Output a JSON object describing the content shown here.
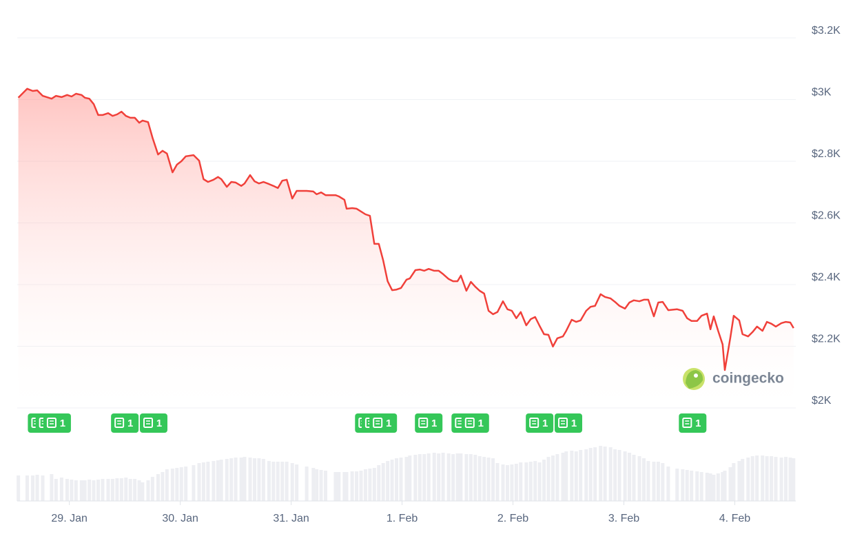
{
  "chart_data": {
    "type": "line",
    "x": [
      -0.46,
      -0.38,
      -0.33,
      -0.29,
      -0.24,
      -0.16,
      -0.12,
      -0.07,
      -0.02,
      0.02,
      0.06,
      0.11,
      0.14,
      0.18,
      0.22,
      0.26,
      0.3,
      0.35,
      0.39,
      0.43,
      0.47,
      0.51,
      0.55,
      0.59,
      0.63,
      0.66,
      0.71,
      0.75,
      0.8,
      0.84,
      0.88,
      0.93,
      0.97,
      1.01,
      1.05,
      1.12,
      1.17,
      1.21,
      1.25,
      1.3,
      1.34,
      1.37,
      1.42,
      1.46,
      1.5,
      1.55,
      1.58,
      1.63,
      1.67,
      1.71,
      1.75,
      1.8,
      1.84,
      1.88,
      1.92,
      1.96,
      2.01,
      2.05,
      2.14,
      2.2,
      2.23,
      2.27,
      2.31,
      2.4,
      2.43,
      2.48,
      2.5,
      2.55,
      2.59,
      2.63,
      2.67,
      2.71,
      2.75,
      2.79,
      2.83,
      2.87,
      2.91,
      2.95,
      2.99,
      3.04,
      3.07,
      3.12,
      3.16,
      3.2,
      3.24,
      3.29,
      3.33,
      3.37,
      3.42,
      3.46,
      3.5,
      3.53,
      3.58,
      3.62,
      3.66,
      3.7,
      3.74,
      3.78,
      3.82,
      3.86,
      3.91,
      3.95,
      3.99,
      4.03,
      4.07,
      4.12,
      4.16,
      4.2,
      4.24,
      4.28,
      4.32,
      4.36,
      4.4,
      4.45,
      4.48,
      4.53,
      4.57,
      4.61,
      4.66,
      4.7,
      4.74,
      4.79,
      4.83,
      4.88,
      4.92,
      4.96,
      5.01,
      5.05,
      5.09,
      5.14,
      5.18,
      5.22,
      5.27,
      5.31,
      5.35,
      5.4,
      5.48,
      5.53,
      5.57,
      5.61,
      5.66,
      5.7,
      5.75,
      5.78,
      5.81,
      5.85,
      5.89,
      5.91,
      5.96,
      5.99,
      6.04,
      6.07,
      6.12,
      6.16,
      6.2,
      6.25,
      6.29,
      6.33,
      6.37,
      6.42,
      6.46,
      6.5,
      6.53
    ],
    "series": [
      {
        "color": "#f0403a",
        "values": [
          3006,
          3035,
          3028,
          3030,
          3012,
          3003,
          3012,
          3008,
          3015,
          3010,
          3019,
          3015,
          3006,
          3003,
          2985,
          2950,
          2950,
          2956,
          2947,
          2952,
          2961,
          2947,
          2941,
          2941,
          2925,
          2932,
          2927,
          2876,
          2822,
          2834,
          2825,
          2764,
          2789,
          2800,
          2816,
          2820,
          2802,
          2742,
          2733,
          2740,
          2749,
          2742,
          2717,
          2733,
          2731,
          2720,
          2728,
          2755,
          2735,
          2728,
          2733,
          2726,
          2720,
          2713,
          2737,
          2740,
          2679,
          2704,
          2704,
          2702,
          2693,
          2699,
          2690,
          2690,
          2686,
          2675,
          2646,
          2648,
          2646,
          2637,
          2628,
          2623,
          2532,
          2532,
          2478,
          2411,
          2382,
          2384,
          2389,
          2416,
          2420,
          2447,
          2449,
          2445,
          2451,
          2445,
          2445,
          2434,
          2418,
          2411,
          2411,
          2429,
          2380,
          2409,
          2393,
          2380,
          2371,
          2315,
          2304,
          2311,
          2346,
          2320,
          2315,
          2291,
          2311,
          2268,
          2288,
          2295,
          2266,
          2239,
          2237,
          2199,
          2226,
          2232,
          2250,
          2286,
          2279,
          2284,
          2315,
          2328,
          2331,
          2369,
          2360,
          2355,
          2344,
          2331,
          2322,
          2342,
          2349,
          2346,
          2351,
          2351,
          2297,
          2342,
          2344,
          2317,
          2320,
          2315,
          2291,
          2282,
          2282,
          2299,
          2306,
          2255,
          2297,
          2250,
          2206,
          2123,
          2228,
          2299,
          2284,
          2239,
          2232,
          2246,
          2264,
          2250,
          2279,
          2273,
          2264,
          2275,
          2279,
          2277,
          2259
        ]
      }
    ],
    "volume": {
      "color": "#edeef2",
      "values": [
        37,
        37,
        37,
        38,
        37,
        39,
        32,
        34,
        32,
        31,
        30,
        30,
        30,
        31,
        30,
        31,
        32,
        32,
        32,
        33,
        33,
        34,
        32,
        32,
        30,
        27,
        30,
        35,
        39,
        42,
        46,
        47,
        48,
        49,
        50,
        52,
        55,
        56,
        57,
        58,
        59,
        60,
        61,
        62,
        63,
        63,
        64,
        63,
        62,
        62,
        61,
        58,
        57,
        57,
        57,
        57,
        55,
        53,
        50,
        48,
        46,
        45,
        44,
        42,
        42,
        42,
        42,
        43,
        43,
        44,
        46,
        47,
        48,
        52,
        55,
        58,
        60,
        62,
        63,
        64,
        66,
        67,
        68,
        68,
        69,
        70,
        69,
        70,
        69,
        68,
        69,
        69,
        68,
        68,
        67,
        65,
        64,
        63,
        62,
        55,
        53,
        52,
        53,
        54,
        56,
        56,
        57,
        58,
        56,
        60,
        64,
        66,
        68,
        70,
        72,
        73,
        72,
        74,
        75,
        77,
        78,
        80,
        79,
        78,
        75,
        74,
        72,
        70,
        67,
        65,
        62,
        58,
        57,
        57,
        55,
        50,
        47,
        46,
        45,
        44,
        43,
        42,
        41,
        40,
        38,
        40,
        42,
        44,
        49,
        55,
        58,
        61,
        63,
        65,
        66,
        66,
        65,
        65,
        64,
        63,
        64,
        63,
        62
      ]
    },
    "news": {
      "color": "#35c759",
      "markers": [
        {
          "x": -0.25,
          "count": 1
        },
        {
          "x": -0.18,
          "count": 1
        },
        {
          "x": -0.11,
          "count": 1
        },
        {
          "x": 0.5,
          "count": 1
        },
        {
          "x": 0.76,
          "count": 1
        },
        {
          "x": 2.7,
          "count": 1
        },
        {
          "x": 2.76,
          "count": 1
        },
        {
          "x": 2.83,
          "count": 1
        },
        {
          "x": 3.24,
          "count": 1
        },
        {
          "x": 3.57,
          "count": 1
        },
        {
          "x": 3.66,
          "count": 1
        },
        {
          "x": 4.24,
          "count": 1
        },
        {
          "x": 4.5,
          "count": 1
        },
        {
          "x": 5.62,
          "count": 1
        }
      ]
    },
    "xlim": [
      -0.47,
      6.55
    ],
    "xticks": [
      {
        "value": 0,
        "label": "29. Jan"
      },
      {
        "value": 1,
        "label": "30. Jan"
      },
      {
        "value": 2,
        "label": "31. Jan"
      },
      {
        "value": 3,
        "label": "1. Feb"
      },
      {
        "value": 4,
        "label": "2. Feb"
      },
      {
        "value": 5,
        "label": "3. Feb"
      },
      {
        "value": 6,
        "label": "4. Feb"
      }
    ],
    "ylim": [
      2000,
      3200
    ],
    "yticks": [
      {
        "value": 2000,
        "label": "$2K"
      },
      {
        "value": 2200,
        "label": "$2.2K"
      },
      {
        "value": 2400,
        "label": "$2.4K"
      },
      {
        "value": 2600,
        "label": "$2.6K"
      },
      {
        "value": 2800,
        "label": "$2.8K"
      },
      {
        "value": 3000,
        "label": "$3K"
      },
      {
        "value": 3200,
        "label": "$3.2K"
      }
    ],
    "grid": true,
    "watermark": "coingecko"
  }
}
